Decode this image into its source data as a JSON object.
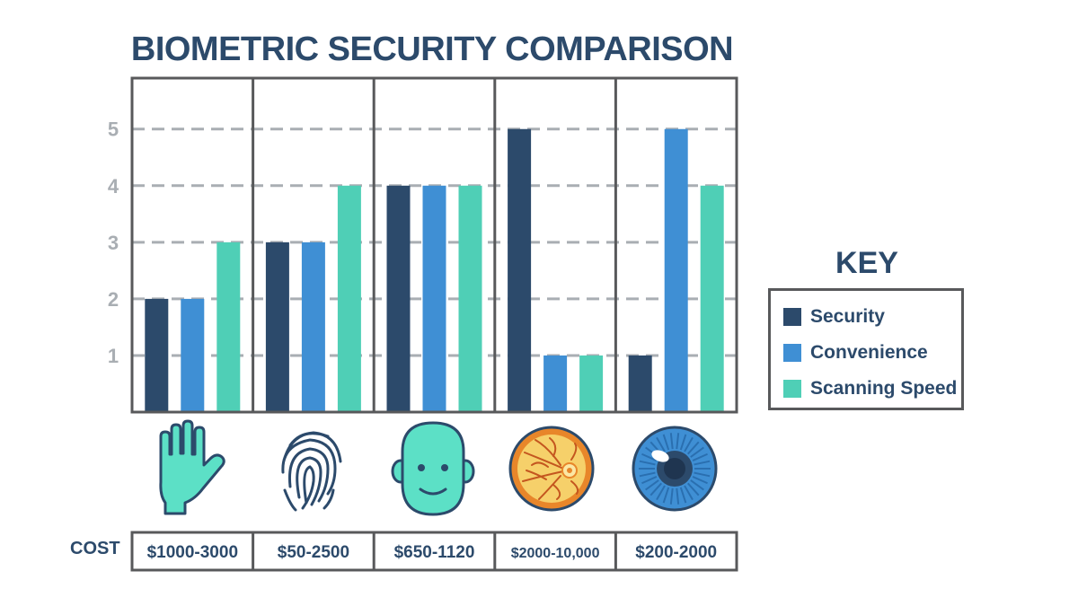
{
  "chart_data": {
    "type": "bar",
    "title": "BIOMETRIC SECURITY COMPARISON",
    "categories": [
      "hand geometry",
      "fingerprint",
      "facial recognition",
      "retina",
      "iris"
    ],
    "series": [
      {
        "name": "Security",
        "color": "#2c4a6b",
        "values": [
          2,
          3,
          4,
          5,
          1
        ]
      },
      {
        "name": "Convenience",
        "color": "#3f8fd4",
        "values": [
          2,
          3,
          4,
          1,
          5
        ]
      },
      {
        "name": "Scanning Speed",
        "color": "#4fcfb6",
        "values": [
          3,
          4,
          4,
          1,
          4
        ]
      }
    ],
    "y_ticks": [
      "1",
      "2",
      "3",
      "4",
      "5"
    ],
    "ylim": [
      0,
      5.9
    ],
    "grid": "dashed horizontal",
    "legend_title": "KEY",
    "legend_position": "right",
    "cost_heading": "COST",
    "costs": [
      "$1000-3000",
      "$50-2500",
      "$650-1120",
      "$2000-10,000",
      "$200-2000"
    ],
    "icons": [
      "hand-icon",
      "fingerprint-icon",
      "face-icon",
      "retina-icon",
      "iris-icon"
    ]
  }
}
